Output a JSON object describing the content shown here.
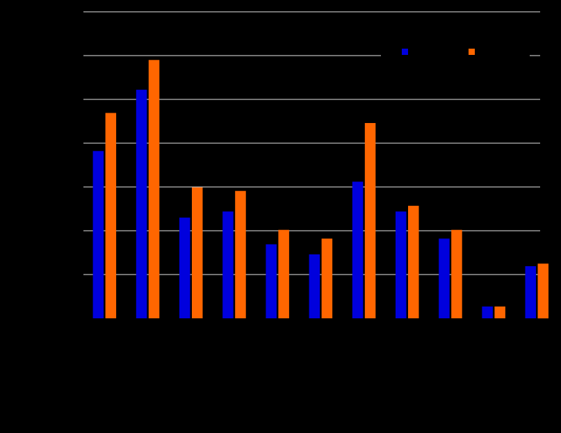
{
  "chart_data": {
    "type": "bar",
    "title": "",
    "xlabel": "",
    "ylabel": "",
    "categories": [
      "",
      "",
      "",
      "",
      "",
      "",
      "",
      "",
      "",
      "",
      ""
    ],
    "series": [
      {
        "color": "#0000dd",
        "values": [
          38.2,
          52.2,
          23.0,
          24.4,
          16.9,
          14.6,
          31.2,
          24.4,
          18.2,
          2.7,
          11.9
        ]
      },
      {
        "color": "#ff6600",
        "values": [
          46.9,
          59.0,
          29.9,
          29.1,
          20.2,
          18.2,
          44.6,
          25.7,
          20.2,
          2.7,
          12.5
        ]
      }
    ],
    "ylim": [
      0,
      70
    ],
    "ytick_step": 10,
    "grid": true,
    "legend_position": "top-right",
    "background": "#000000",
    "grid_color": "#ffffff"
  }
}
